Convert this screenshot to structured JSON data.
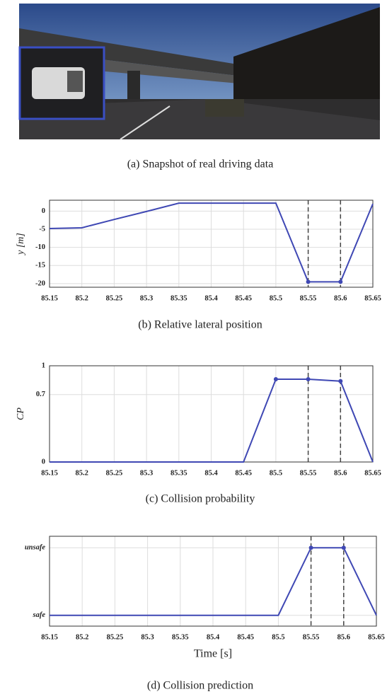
{
  "photo": {
    "caption": "(a) Snapshot of real driving data"
  },
  "chart_data": [
    {
      "type": "line",
      "title": "(b) Relative lateral position",
      "ylabel": "y [m]",
      "x": [
        85.15,
        85.2,
        85.25,
        85.3,
        85.35,
        85.4,
        85.45,
        85.5,
        85.55,
        85.6,
        85.65
      ],
      "values": [
        -4.8,
        -4.6,
        -2.3,
        -0.1,
        2.2,
        2.2,
        2.2,
        2.2,
        -19.5,
        -19.5,
        2
      ],
      "markers": [
        8,
        9
      ],
      "vlines": [
        85.55,
        85.6
      ],
      "color": "#3f48b4",
      "xlim": [
        85.15,
        85.65
      ],
      "xticks": [
        85.15,
        85.2,
        85.25,
        85.3,
        85.35,
        85.4,
        85.45,
        85.5,
        85.55,
        85.6,
        85.65
      ],
      "ylim": [
        -21,
        3
      ],
      "yticks": [
        -20,
        -15,
        -10,
        -5,
        0
      ],
      "grid": true
    },
    {
      "type": "line",
      "title": "(c) Collision probability",
      "ylabel": "CP",
      "x": [
        85.15,
        85.2,
        85.25,
        85.3,
        85.35,
        85.4,
        85.45,
        85.5,
        85.55,
        85.6,
        85.65
      ],
      "values": [
        0,
        0,
        0,
        0,
        0,
        0,
        0,
        0.86,
        0.86,
        0.84,
        0
      ],
      "markers": [
        7,
        8,
        9
      ],
      "vlines": [
        85.55,
        85.6
      ],
      "color": "#3f48b4",
      "xlim": [
        85.15,
        85.65
      ],
      "xticks": [
        85.15,
        85.2,
        85.25,
        85.3,
        85.35,
        85.4,
        85.45,
        85.5,
        85.55,
        85.6,
        85.65
      ],
      "ylim": [
        0,
        1
      ],
      "yticks": [
        0,
        0.7,
        1
      ],
      "grid": true
    },
    {
      "type": "line",
      "title": "(d) Collision prediction",
      "xlabel": "Time [s]",
      "x": [
        85.15,
        85.2,
        85.25,
        85.3,
        85.35,
        85.4,
        85.45,
        85.5,
        85.55,
        85.6,
        85.65
      ],
      "values": [
        0,
        0,
        0,
        0,
        0,
        0,
        0,
        0,
        1,
        1,
        0
      ],
      "markers": [
        8,
        9
      ],
      "vlines": [
        85.55,
        85.6
      ],
      "color": "#3f48b4",
      "xlim": [
        85.15,
        85.65
      ],
      "xticks": [
        85.15,
        85.2,
        85.25,
        85.3,
        85.35,
        85.4,
        85.45,
        85.5,
        85.55,
        85.6,
        85.65
      ],
      "ylim": [
        -0.16,
        1.17
      ],
      "yticks": [
        {
          "value": 0,
          "label": "safe"
        },
        {
          "value": 1,
          "label": "unsafe"
        }
      ],
      "grid": true
    }
  ]
}
